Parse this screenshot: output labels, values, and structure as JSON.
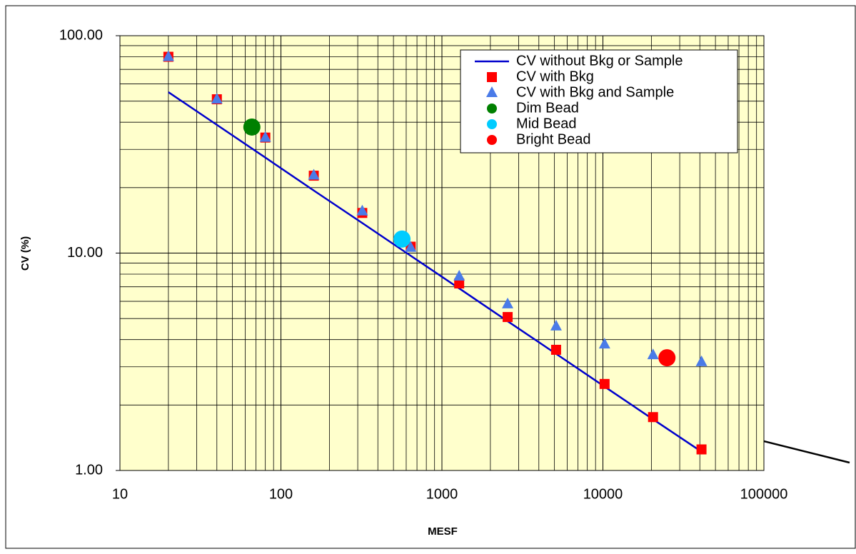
{
  "chart_data": {
    "type": "scatter",
    "x_label": "MESF",
    "y_label": "CV (%)",
    "xlim": [
      10,
      100000
    ],
    "ylim": [
      1,
      100
    ],
    "xscale": "log",
    "yscale": "log",
    "xticks": [
      10,
      100,
      1000,
      10000,
      100000
    ],
    "yticks": [
      {
        "value": 1,
        "label": "1.00"
      },
      {
        "value": 10,
        "label": "10.00"
      },
      {
        "value": 100,
        "label": "100.00"
      }
    ],
    "grid": true,
    "minor_grid": true,
    "background": "#ffffcc",
    "legend": "upper right",
    "series": [
      {
        "name": "CV without Bkg or Sample",
        "color": "#0000cc",
        "marker": "line",
        "x": [
          20,
          40,
          80,
          160,
          320,
          640,
          1280,
          2560,
          5120,
          10240,
          20480,
          40960
        ],
        "values": [
          55,
          38.9,
          27.5,
          19.4,
          13.75,
          9.72,
          6.88,
          4.86,
          3.44,
          2.43,
          1.72,
          1.22
        ]
      },
      {
        "name": "CV with Bkg",
        "color": "#ff0000",
        "marker": "square",
        "x": [
          20,
          40,
          80,
          160,
          320,
          640,
          1280,
          2560,
          5120,
          10240,
          20480,
          40960
        ],
        "values": [
          80,
          51,
          34,
          22.7,
          15.3,
          10.7,
          7.25,
          5.08,
          3.59,
          2.5,
          1.76,
          1.25
        ]
      },
      {
        "name": "CV with Bkg and Sample",
        "color": "#4a7be8",
        "marker": "triangle",
        "x": [
          20,
          40,
          80,
          160,
          320,
          640,
          1280,
          2560,
          5120,
          10240,
          20480,
          40960
        ],
        "values": [
          80,
          51,
          34,
          22.8,
          15.6,
          10.6,
          7.82,
          5.83,
          4.61,
          3.81,
          3.4,
          3.16
        ]
      },
      {
        "name": "Dim Bead",
        "color": "#008000",
        "marker": "circle",
        "x": [
          66
        ],
        "values": [
          38
        ]
      },
      {
        "name": "Mid Bead",
        "color": "#00ccff",
        "marker": "circle",
        "x": [
          565
        ],
        "values": [
          11.6
        ]
      },
      {
        "name": "Bright Bead",
        "color": "#ff0000",
        "marker": "circle",
        "x": [
          25000
        ],
        "values": [
          3.3
        ]
      }
    ]
  }
}
